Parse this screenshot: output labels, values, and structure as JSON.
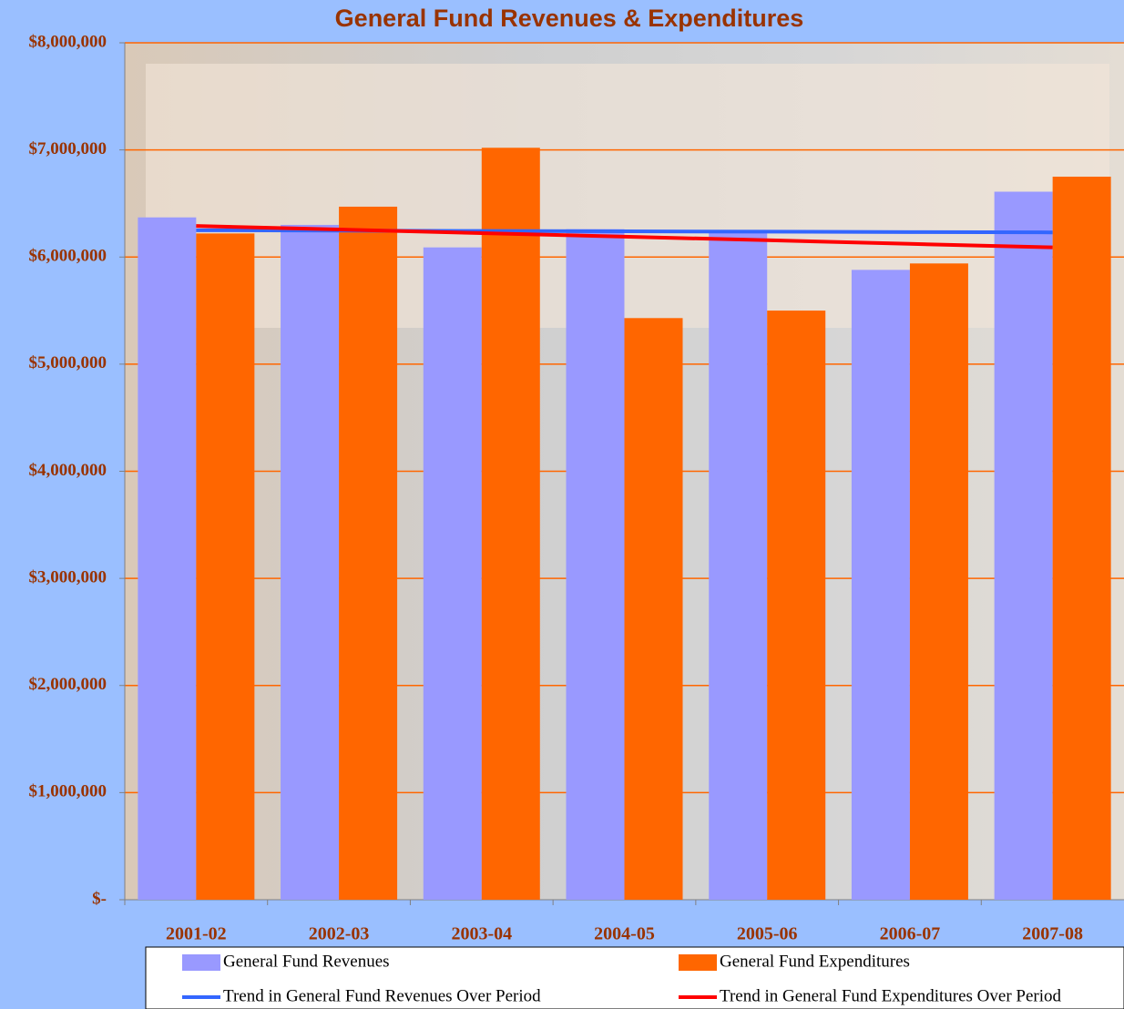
{
  "chart_data": {
    "type": "bar",
    "title": "General Fund Revenues & Expenditures",
    "categories": [
      "2001-02",
      "2002-03",
      "2003-04",
      "2004-05",
      "2005-06",
      "2006-07",
      "2007-08"
    ],
    "series": [
      {
        "name": "General Fund Revenues",
        "type": "bar",
        "color": "#9999ff",
        "values": [
          6370000,
          6300000,
          6090000,
          6260000,
          6230000,
          5880000,
          6610000
        ]
      },
      {
        "name": "General Fund Expenditures",
        "type": "bar",
        "color": "#ff6600",
        "values": [
          6220000,
          6470000,
          7020000,
          5430000,
          5500000,
          5940000,
          6750000
        ]
      },
      {
        "name": "Trend in General Fund Revenues Over Period",
        "type": "line",
        "color": "#3366ff",
        "values": [
          6250000,
          6247000,
          6243000,
          6240000,
          6237000,
          6233000,
          6230000
        ]
      },
      {
        "name": "Trend in General Fund Expenditures Over Period",
        "type": "line",
        "color": "#ff0000",
        "values": [
          6290000,
          6257000,
          6223000,
          6190000,
          6157000,
          6123000,
          6090000
        ]
      }
    ],
    "ylim": [
      0,
      8000000
    ],
    "yticks": [
      {
        "value": 0,
        "label": "$-"
      },
      {
        "value": 1000000,
        "label": "$1,000,000"
      },
      {
        "value": 2000000,
        "label": "$2,000,000"
      },
      {
        "value": 3000000,
        "label": "$3,000,000"
      },
      {
        "value": 4000000,
        "label": "$4,000,000"
      },
      {
        "value": 5000000,
        "label": "$5,000,000"
      },
      {
        "value": 6000000,
        "label": "$6,000,000"
      },
      {
        "value": 7000000,
        "label": "$7,000,000"
      },
      {
        "value": 8000000,
        "label": "$8,000,000"
      }
    ],
    "grid": true,
    "grid_color": "#ff6600",
    "legend": "bottom"
  }
}
